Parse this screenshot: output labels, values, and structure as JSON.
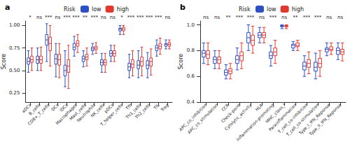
{
  "chart_data": [
    {
      "type": "boxplot",
      "title": "a",
      "y_label": "Score",
      "legend_title": "Risk",
      "legend": "top",
      "categories": [
        "aDCs",
        "B_cells",
        "CD8+_T_cells",
        "DCs",
        "iDCs",
        "Macrophages",
        "Mast_cells",
        "Neutrophils",
        "NK_cells",
        "pDCs",
        "T_helper_cells",
        "Tfh",
        "Th1_cells",
        "Th2_cells",
        "TIL",
        "Treg"
      ],
      "significance": [
        "*",
        "ns",
        "***",
        "ns",
        "***",
        "***",
        "**",
        "***",
        "ns",
        "ns",
        "*",
        "***",
        "***",
        "***",
        "***",
        "ns"
      ],
      "ylim": [
        0.15,
        1.05
      ],
      "yticks": [
        0.25,
        {
          "value": 0.5,
          "label": "0.50"
        },
        0.75,
        {
          "value": 1,
          "label": "1.00"
        }
      ],
      "series": [
        {
          "name": "low",
          "color": "#2f4fc4",
          "values": [
            [
              0.48,
              0.57,
              0.6,
              0.64,
              0.72
            ],
            [
              0.5,
              0.58,
              0.62,
              0.66,
              0.75
            ],
            [
              0.6,
              0.78,
              0.84,
              0.9,
              1.02
            ],
            [
              0.43,
              0.57,
              0.63,
              0.68,
              0.8
            ],
            [
              0.32,
              0.44,
              0.5,
              0.56,
              0.72
            ],
            [
              0.66,
              0.73,
              0.76,
              0.8,
              0.88
            ],
            [
              0.54,
              0.6,
              0.63,
              0.66,
              0.72
            ],
            [
              0.68,
              0.72,
              0.74,
              0.76,
              0.8
            ],
            [
              0.48,
              0.56,
              0.59,
              0.62,
              0.69
            ],
            [
              0.6,
              0.66,
              0.69,
              0.72,
              0.78
            ],
            [
              0.9,
              0.94,
              0.96,
              0.97,
              1.0
            ],
            [
              0.42,
              0.5,
              0.54,
              0.58,
              0.68
            ],
            [
              0.42,
              0.52,
              0.56,
              0.61,
              0.72
            ],
            [
              0.42,
              0.52,
              0.56,
              0.61,
              0.7
            ],
            [
              0.66,
              0.72,
              0.75,
              0.78,
              0.84
            ],
            [
              0.74,
              0.77,
              0.79,
              0.8,
              0.84
            ]
          ]
        },
        {
          "name": "high",
          "color": "#e0392f",
          "values": [
            [
              0.5,
              0.59,
              0.62,
              0.66,
              0.75
            ],
            [
              0.5,
              0.58,
              0.62,
              0.66,
              0.76
            ],
            [
              0.55,
              0.72,
              0.8,
              0.87,
              1.0
            ],
            [
              0.42,
              0.56,
              0.62,
              0.68,
              0.8
            ],
            [
              0.3,
              0.48,
              0.55,
              0.62,
              0.78
            ],
            [
              0.7,
              0.77,
              0.8,
              0.83,
              0.9
            ],
            [
              0.55,
              0.62,
              0.65,
              0.68,
              0.75
            ],
            [
              0.69,
              0.73,
              0.75,
              0.77,
              0.81
            ],
            [
              0.48,
              0.56,
              0.59,
              0.62,
              0.69
            ],
            [
              0.6,
              0.66,
              0.69,
              0.72,
              0.78
            ],
            [
              0.9,
              0.94,
              0.96,
              0.98,
              1.0
            ],
            [
              0.44,
              0.53,
              0.57,
              0.62,
              0.72
            ],
            [
              0.44,
              0.55,
              0.6,
              0.65,
              0.76
            ],
            [
              0.45,
              0.55,
              0.6,
              0.64,
              0.74
            ],
            [
              0.68,
              0.74,
              0.77,
              0.8,
              0.86
            ],
            [
              0.74,
              0.77,
              0.79,
              0.81,
              0.84
            ]
          ]
        }
      ]
    },
    {
      "type": "boxplot",
      "title": "b",
      "y_label": "Score",
      "legend_title": "Risk",
      "legend": "top",
      "categories": [
        "APC_co_inhibition",
        "APC_co_stimulation",
        "CCR",
        "Check-point",
        "Cytolytic_activity",
        "HLA",
        "Inflammation-promoting",
        "MHC_class_I",
        "Parainflammation",
        "T_cell_co-inhibition",
        "T_cell_co-stimulation",
        "Type_I_IFN_Reponse",
        "Type_II_IFN_Reponse"
      ],
      "significance": [
        "ns",
        "ns",
        "**",
        "***",
        "***",
        "ns",
        "***",
        "ns",
        "**",
        "***",
        "***",
        "ns",
        "ns"
      ],
      "ylim": [
        0.4,
        1.03
      ],
      "yticks": [
        0.4,
        0.6,
        0.8,
        {
          "value": 1,
          "label": "1.0"
        }
      ],
      "series": [
        {
          "name": "low",
          "color": "#2f4fc4",
          "values": [
            [
              0.7,
              0.75,
              0.78,
              0.8,
              0.86
            ],
            [
              0.66,
              0.7,
              0.73,
              0.75,
              0.8
            ],
            [
              0.58,
              0.61,
              0.63,
              0.65,
              0.69
            ],
            [
              0.65,
              0.7,
              0.73,
              0.76,
              0.82
            ],
            [
              0.8,
              0.86,
              0.9,
              0.94,
              1.0
            ],
            [
              0.86,
              0.9,
              0.92,
              0.94,
              0.98
            ],
            [
              0.68,
              0.74,
              0.76,
              0.79,
              0.84
            ],
            [
              0.97,
              0.985,
              0.99,
              0.995,
              1.0
            ],
            [
              0.8,
              0.82,
              0.84,
              0.85,
              0.87
            ],
            [
              0.6,
              0.65,
              0.68,
              0.71,
              0.76
            ],
            [
              0.58,
              0.64,
              0.67,
              0.71,
              0.78
            ],
            [
              0.76,
              0.79,
              0.81,
              0.82,
              0.86
            ],
            [
              0.73,
              0.77,
              0.8,
              0.82,
              0.86
            ]
          ]
        },
        {
          "name": "high",
          "color": "#e0392f",
          "values": [
            [
              0.69,
              0.74,
              0.77,
              0.8,
              0.86
            ],
            [
              0.66,
              0.7,
              0.73,
              0.75,
              0.8
            ],
            [
              0.58,
              0.62,
              0.64,
              0.66,
              0.7
            ],
            [
              0.66,
              0.72,
              0.76,
              0.79,
              0.86
            ],
            [
              0.78,
              0.84,
              0.88,
              0.92,
              0.99
            ],
            [
              0.86,
              0.9,
              0.92,
              0.94,
              0.98
            ],
            [
              0.7,
              0.76,
              0.79,
              0.82,
              0.88
            ],
            [
              0.97,
              0.985,
              0.99,
              0.995,
              1.0
            ],
            [
              0.8,
              0.83,
              0.84,
              0.86,
              0.88
            ],
            [
              0.62,
              0.67,
              0.7,
              0.73,
              0.79
            ],
            [
              0.6,
              0.67,
              0.7,
              0.74,
              0.8
            ],
            [
              0.77,
              0.8,
              0.81,
              0.83,
              0.86
            ],
            [
              0.72,
              0.77,
              0.79,
              0.81,
              0.86
            ]
          ]
        }
      ]
    }
  ]
}
